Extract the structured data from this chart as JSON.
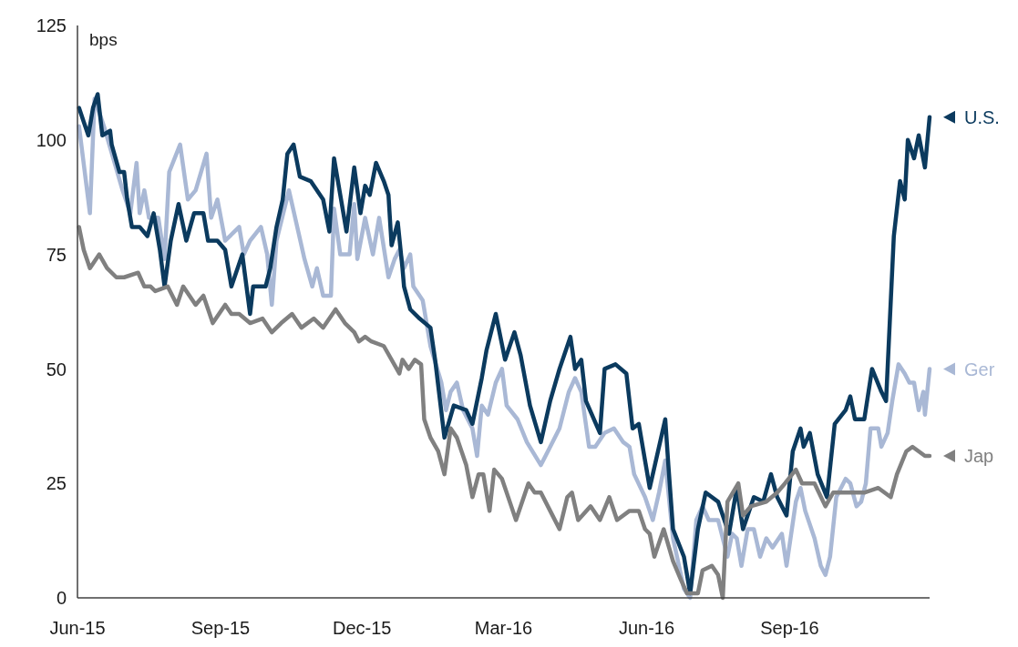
{
  "chart_data": {
    "type": "line",
    "ylabel": "bps",
    "line_style": "solid",
    "legend": "right",
    "xlim": [
      "2015-06-01",
      "2016-11-30"
    ],
    "xticks": [
      {
        "value": "2015-06-01",
        "label": "Jun-15"
      },
      {
        "value": "2015-09-01",
        "label": "Sep-15"
      },
      {
        "value": "2015-12-01",
        "label": "Dec-15"
      },
      {
        "value": "2016-03-01",
        "label": "Mar-16"
      },
      {
        "value": "2016-06-01",
        "label": "Jun-16"
      },
      {
        "value": "2016-09-01",
        "label": "Sep-16"
      }
    ],
    "ylim": [
      0,
      125
    ],
    "yticks": [
      0,
      25,
      50,
      75,
      100,
      125
    ],
    "series": [
      {
        "name": "Ger",
        "color": "#a9b8d5",
        "x": [
          "2015-06-02",
          "2015-06-09",
          "2015-06-12",
          "2015-06-18",
          "2015-06-24",
          "2015-06-30",
          "2015-07-05",
          "2015-07-09",
          "2015-07-11",
          "2015-07-14",
          "2015-07-17",
          "2015-07-23",
          "2015-07-27",
          "2015-07-30",
          "2015-08-06",
          "2015-08-11",
          "2015-08-16",
          "2015-08-23",
          "2015-08-26",
          "2015-08-30",
          "2015-09-04",
          "2015-09-13",
          "2015-09-16",
          "2015-09-20",
          "2015-09-27",
          "2015-10-01",
          "2015-10-04",
          "2015-10-07",
          "2015-10-15",
          "2015-10-25",
          "2015-10-30",
          "2015-11-02",
          "2015-11-06",
          "2015-11-11",
          "2015-11-13",
          "2015-11-17",
          "2015-11-23",
          "2015-11-26",
          "2015-11-28",
          "2015-12-03",
          "2015-12-08",
          "2015-12-12",
          "2015-12-18",
          "2015-12-22",
          "2015-12-25",
          "2015-12-28",
          "2016-01-01",
          "2016-01-03",
          "2016-01-09",
          "2016-01-10",
          "2016-01-14",
          "2016-01-21",
          "2016-01-24",
          "2016-01-27",
          "2016-01-31",
          "2016-02-04",
          "2016-02-10",
          "2016-02-13",
          "2016-02-16",
          "2016-02-20",
          "2016-02-25",
          "2016-02-29",
          "2016-03-03",
          "2016-03-10",
          "2016-03-16",
          "2016-03-25",
          "2016-03-31",
          "2016-04-06",
          "2016-04-12",
          "2016-04-16",
          "2016-04-20",
          "2016-04-25",
          "2016-04-29",
          "2016-05-05",
          "2016-05-11",
          "2016-05-17",
          "2016-05-21",
          "2016-05-24",
          "2016-05-31",
          "2016-06-05",
          "2016-06-09",
          "2016-06-13",
          "2016-06-18",
          "2016-06-25",
          "2016-06-29",
          "2016-07-03",
          "2016-07-07",
          "2016-07-11",
          "2016-07-17",
          "2016-07-23",
          "2016-07-26",
          "2016-07-29",
          "2016-08-01",
          "2016-08-05",
          "2016-08-09",
          "2016-08-13",
          "2016-08-17",
          "2016-08-21",
          "2016-08-27",
          "2016-08-30",
          "2016-09-05",
          "2016-09-08",
          "2016-09-11",
          "2016-09-17",
          "2016-09-21",
          "2016-09-24",
          "2016-09-27",
          "2016-10-01",
          "2016-10-07",
          "2016-10-10",
          "2016-10-14",
          "2016-10-17",
          "2016-10-20",
          "2016-10-23",
          "2016-10-28",
          "2016-10-30",
          "2016-11-03",
          "2016-11-06",
          "2016-11-10",
          "2016-11-14",
          "2016-11-17",
          "2016-11-20",
          "2016-11-23",
          "2016-11-26",
          "2016-11-27",
          "2016-11-30"
        ],
        "values": [
          103,
          84,
          109,
          103,
          96,
          89,
          84,
          95,
          84,
          89,
          83,
          83,
          74,
          93,
          99,
          87,
          89,
          97,
          83,
          87,
          78,
          81,
          75,
          78,
          81,
          75,
          64,
          78,
          89,
          74,
          68,
          72,
          66,
          66,
          85,
          75,
          75,
          86,
          74,
          83,
          75,
          83,
          70,
          74,
          76,
          72,
          75,
          68,
          65,
          63,
          55,
          47,
          41,
          45,
          47,
          41,
          37,
          31,
          42,
          40,
          47,
          50,
          42,
          39,
          34,
          29,
          33,
          37,
          45,
          48,
          45,
          33,
          33,
          36,
          37,
          34,
          33,
          27,
          22,
          17,
          23,
          30,
          13,
          2,
          0,
          17,
          20,
          17,
          17,
          9,
          14,
          13,
          7,
          15,
          15,
          9,
          13,
          11,
          14,
          7,
          21,
          24,
          19,
          13,
          7,
          5,
          9,
          22,
          26,
          25,
          20,
          21,
          25,
          37,
          37,
          33,
          36,
          43,
          51,
          49,
          47,
          47,
          41,
          45,
          40,
          50
        ]
      },
      {
        "name": "U.S.",
        "color": "#0b3a5e",
        "x": [
          "2015-06-02",
          "2015-06-05",
          "2015-06-08",
          "2015-06-11",
          "2015-06-14",
          "2015-06-17",
          "2015-06-22",
          "2015-06-23",
          "2015-06-28",
          "2015-07-01",
          "2015-07-03",
          "2015-07-06",
          "2015-07-11",
          "2015-07-16",
          "2015-07-20",
          "2015-07-24",
          "2015-07-27",
          "2015-07-31",
          "2015-08-05",
          "2015-08-10",
          "2015-08-15",
          "2015-08-21",
          "2015-08-24",
          "2015-08-30",
          "2015-09-04",
          "2015-09-08",
          "2015-09-15",
          "2015-09-20",
          "2015-09-22",
          "2015-09-30",
          "2015-10-03",
          "2015-10-07",
          "2015-10-11",
          "2015-10-14",
          "2015-10-18",
          "2015-10-22",
          "2015-10-29",
          "2015-11-06",
          "2015-11-10",
          "2015-11-13",
          "2015-11-17",
          "2015-11-21",
          "2015-11-26",
          "2015-11-30",
          "2015-12-03",
          "2015-12-06",
          "2015-12-10",
          "2015-12-15",
          "2015-12-18",
          "2015-12-20",
          "2015-12-24",
          "2015-12-27",
          "2015-12-28",
          "2016-01-01",
          "2016-01-07",
          "2016-01-14",
          "2016-01-17",
          "2016-01-23",
          "2016-01-29",
          "2016-02-06",
          "2016-02-10",
          "2016-02-16",
          "2016-02-19",
          "2016-02-25",
          "2016-03-02",
          "2016-03-08",
          "2016-03-12",
          "2016-03-18",
          "2016-03-25",
          "2016-03-31",
          "2016-04-06",
          "2016-04-13",
          "2016-04-16",
          "2016-04-20",
          "2016-04-23",
          "2016-05-02",
          "2016-05-05",
          "2016-05-12",
          "2016-05-19",
          "2016-05-23",
          "2016-05-27",
          "2016-06-03",
          "2016-06-13",
          "2016-06-15",
          "2016-06-18",
          "2016-06-25",
          "2016-06-29",
          "2016-07-04",
          "2016-07-09",
          "2016-07-17",
          "2016-07-24",
          "2016-07-29",
          "2016-08-02",
          "2016-08-09",
          "2016-08-15",
          "2016-08-20",
          "2016-08-24",
          "2016-08-30",
          "2016-09-03",
          "2016-09-08",
          "2016-09-10",
          "2016-09-14",
          "2016-09-19",
          "2016-09-25",
          "2016-09-30",
          "2016-10-07",
          "2016-10-10",
          "2016-10-13",
          "2016-10-19",
          "2016-10-24",
          "2016-10-30",
          "2016-11-02",
          "2016-11-07",
          "2016-11-11",
          "2016-11-14",
          "2016-11-16",
          "2016-11-20",
          "2016-11-23",
          "2016-11-27",
          "2016-11-30"
        ],
        "values": [
          107,
          104,
          101,
          107,
          110,
          101,
          102,
          99,
          93,
          93,
          87,
          81,
          81,
          79,
          84,
          76,
          68,
          78,
          86,
          78,
          84,
          84,
          78,
          78,
          76,
          68,
          75,
          62,
          68,
          68,
          72,
          81,
          87,
          97,
          99,
          92,
          91,
          87,
          80,
          96,
          88,
          80,
          94,
          84,
          90,
          88,
          95,
          91,
          88,
          77,
          82,
          72,
          68,
          63,
          61,
          59,
          52,
          35,
          42,
          41,
          38,
          48,
          54,
          62,
          52,
          58,
          53,
          42,
          34,
          43,
          50,
          57,
          50,
          52,
          43,
          36,
          50,
          51,
          49,
          37,
          38,
          24,
          39,
          29,
          15,
          9,
          1,
          15,
          23,
          21,
          14,
          24,
          15,
          22,
          21,
          27,
          22,
          18,
          32,
          37,
          33,
          36,
          27,
          22,
          38,
          41,
          44,
          39,
          39,
          50,
          45,
          43,
          79,
          91,
          87,
          100,
          96,
          101,
          94,
          105
        ]
      },
      {
        "name": "Jap",
        "color": "#808080",
        "x": [
          "2015-06-02",
          "2015-06-05",
          "2015-06-09",
          "2015-06-15",
          "2015-06-20",
          "2015-06-26",
          "2015-07-01",
          "2015-07-10",
          "2015-07-14",
          "2015-07-18",
          "2015-07-21",
          "2015-07-29",
          "2015-08-04",
          "2015-08-08",
          "2015-08-16",
          "2015-08-21",
          "2015-08-27",
          "2015-09-04",
          "2015-09-08",
          "2015-09-13",
          "2015-09-20",
          "2015-09-28",
          "2015-10-04",
          "2015-10-10",
          "2015-10-17",
          "2015-10-23",
          "2015-10-31",
          "2015-11-06",
          "2015-11-14",
          "2015-11-20",
          "2015-11-26",
          "2015-11-29",
          "2015-12-03",
          "2015-12-07",
          "2015-12-15",
          "2015-12-25",
          "2015-12-27",
          "2015-12-31",
          "2016-01-04",
          "2016-01-08",
          "2016-01-10",
          "2016-01-14",
          "2016-01-19",
          "2016-01-23",
          "2016-01-27",
          "2016-01-31",
          "2016-02-06",
          "2016-02-10",
          "2016-02-14",
          "2016-02-17",
          "2016-02-21",
          "2016-02-24",
          "2016-02-29",
          "2016-03-06",
          "2016-03-09",
          "2016-03-17",
          "2016-03-21",
          "2016-03-25",
          "2016-03-31",
          "2016-04-06",
          "2016-04-11",
          "2016-04-14",
          "2016-04-18",
          "2016-04-26",
          "2016-05-02",
          "2016-05-08",
          "2016-05-13",
          "2016-05-21",
          "2016-05-27",
          "2016-05-31",
          "2016-06-03",
          "2016-06-06",
          "2016-06-12",
          "2016-06-18",
          "2016-06-23",
          "2016-06-27",
          "2016-07-04",
          "2016-07-07",
          "2016-07-13",
          "2016-07-17",
          "2016-07-20",
          "2016-07-23",
          "2016-07-30",
          "2016-08-02",
          "2016-08-07",
          "2016-08-17",
          "2016-08-24",
          "2016-08-29",
          "2016-09-05",
          "2016-09-09",
          "2016-09-17",
          "2016-09-24",
          "2016-09-29",
          "2016-10-10",
          "2016-10-19",
          "2016-10-28",
          "2016-11-05",
          "2016-11-09",
          "2016-11-15",
          "2016-11-19",
          "2016-11-23",
          "2016-11-27",
          "2016-11-30"
        ],
        "values": [
          81,
          76,
          72,
          75,
          72,
          70,
          70,
          71,
          68,
          68,
          67,
          68,
          64,
          68,
          64,
          66,
          60,
          64,
          62,
          62,
          60,
          61,
          58,
          60,
          62,
          59,
          61,
          59,
          63,
          60,
          58,
          56,
          57,
          56,
          55,
          49,
          52,
          50,
          52,
          51,
          39,
          35,
          32,
          27,
          37,
          35,
          29,
          22,
          27,
          27,
          19,
          28,
          26,
          20,
          17,
          25,
          23,
          23,
          19,
          15,
          22,
          23,
          17,
          20,
          17,
          22,
          17,
          19,
          19,
          15,
          14,
          9,
          15,
          8,
          4,
          1,
          1,
          6,
          7,
          5,
          0,
          21,
          25,
          18,
          20,
          21,
          23,
          25,
          28,
          25,
          25,
          20,
          23,
          23,
          23,
          24,
          22,
          27,
          32,
          33,
          32,
          31,
          31
        ]
      }
    ]
  }
}
